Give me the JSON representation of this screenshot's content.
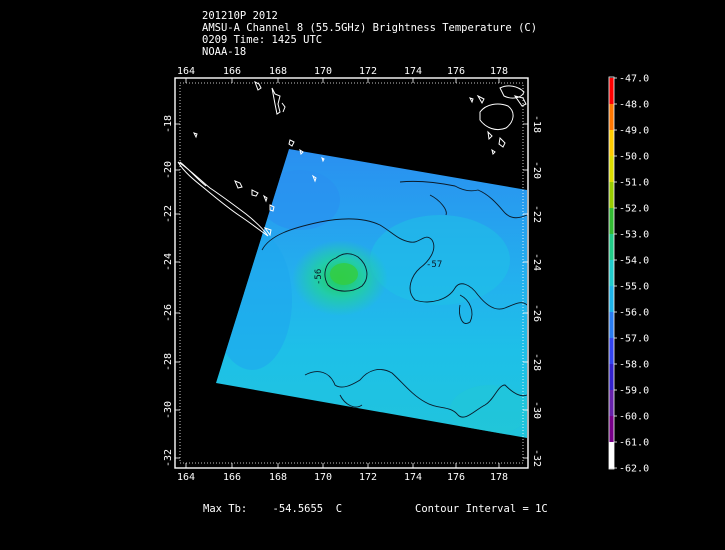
{
  "header": {
    "line1": "201210P 2012",
    "line2": "AMSU-A Channel 8 (55.5GHz) Brightness Temperature (C)",
    "line3": "0209 Time: 1425 UTC",
    "line4": "NOAA-18"
  },
  "map": {
    "lon_ticks": [
      "164",
      "166",
      "168",
      "170",
      "172",
      "174",
      "176",
      "178"
    ],
    "lat_ticks": [
      "-18",
      "-20",
      "-22",
      "-24",
      "-26",
      "-28",
      "-30",
      "-32"
    ],
    "contour_labels": [
      "-56",
      "-57"
    ],
    "contour_interval": "Contour Interval = 1C"
  },
  "colorbar": {
    "labels": [
      "-47.0",
      "-48.0",
      "-49.0",
      "-50.0",
      "-51.0",
      "-52.0",
      "-53.0",
      "-54.0",
      "-55.0",
      "-56.0",
      "-57.0",
      "-58.0",
      "-59.0",
      "-60.0",
      "-61.0",
      "-62.0"
    ],
    "colors": [
      "#ff0000",
      "#ff7700",
      "#ffcc00",
      "#dddd00",
      "#99cc00",
      "#33bb33",
      "#22cc88",
      "#22cccc",
      "#1fb3e8",
      "#2a7cf0",
      "#3344ee",
      "#3322cc",
      "#6622aa",
      "#770088",
      "#ffffff"
    ]
  },
  "footer": {
    "max_label": "Max Tb:    -54.5655  C"
  }
}
